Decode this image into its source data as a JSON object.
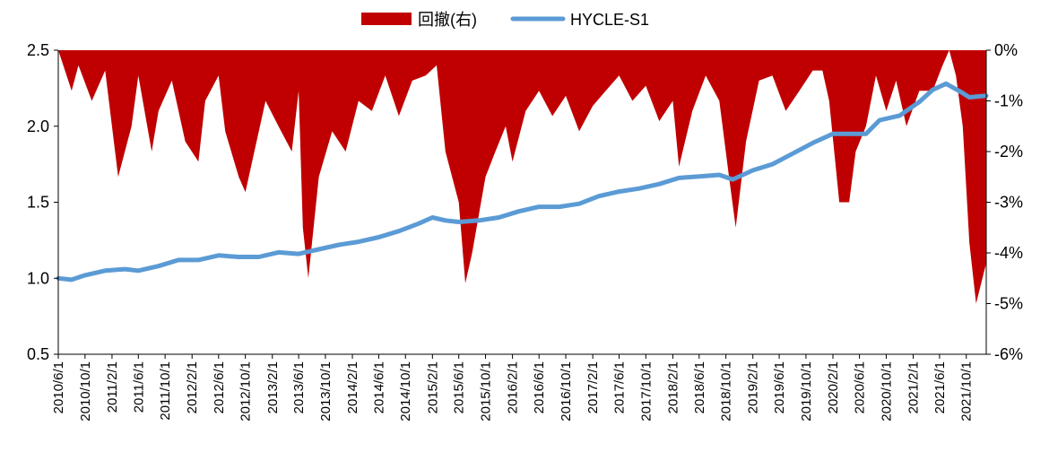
{
  "chart_data": {
    "type": "line",
    "legend": {
      "placement": "top-center",
      "entries": [
        {
          "label": "回撤(右)",
          "kind": "area",
          "color": "#C00000"
        },
        {
          "label": "HYCLE-S1",
          "kind": "line",
          "color": "#5B9BD5"
        }
      ]
    },
    "y_left": {
      "ylim": [
        0.5,
        2.5
      ],
      "ticks": [
        "0.5",
        "1.0",
        "1.5",
        "2.0",
        "2.5"
      ],
      "tick_values": [
        0.5,
        1.0,
        1.5,
        2.0,
        2.5
      ]
    },
    "y_right": {
      "ylim": [
        -6,
        0
      ],
      "ticks": [
        "-6%",
        "-5%",
        "-4%",
        "-3%",
        "-2%",
        "-1%",
        "0%"
      ],
      "tick_values": [
        -6,
        -5,
        -4,
        -3,
        -2,
        -1,
        0
      ]
    },
    "x_range": [
      "2010-06-01",
      "2021-12-31"
    ],
    "x_ticks": [
      "2010/6/1",
      "2010/10/1",
      "2011/2/1",
      "2011/6/1",
      "2011/10/1",
      "2012/2/1",
      "2012/6/1",
      "2012/10/1",
      "2013/2/1",
      "2013/6/1",
      "2013/10/1",
      "2014/2/1",
      "2014/6/1",
      "2014/10/1",
      "2015/2/1",
      "2015/6/1",
      "2015/10/1",
      "2016/2/1",
      "2016/6/1",
      "2016/10/1",
      "2017/2/1",
      "2017/6/1",
      "2017/10/1",
      "2018/2/1",
      "2018/6/1",
      "2018/10/1",
      "2019/2/1",
      "2019/6/1",
      "2019/10/1",
      "2020/2/1",
      "2020/6/1",
      "2020/10/1",
      "2021/2/1",
      "2021/6/1",
      "2021/10/1"
    ],
    "series": [
      {
        "name": "HYCLE-S1",
        "axis": "left",
        "color": "#5B9BD5",
        "x": [
          "2010-06-01",
          "2010-08-01",
          "2010-10-01",
          "2011-01-01",
          "2011-04-01",
          "2011-06-01",
          "2011-09-01",
          "2011-12-01",
          "2012-03-01",
          "2012-06-01",
          "2012-09-01",
          "2012-12-01",
          "2013-03-01",
          "2013-06-01",
          "2013-09-01",
          "2013-12-01",
          "2014-03-01",
          "2014-06-01",
          "2014-09-01",
          "2014-12-01",
          "2015-02-01",
          "2015-04-01",
          "2015-06-01",
          "2015-09-01",
          "2015-12-01",
          "2016-03-01",
          "2016-06-01",
          "2016-09-01",
          "2016-12-01",
          "2017-03-01",
          "2017-06-01",
          "2017-09-01",
          "2017-12-01",
          "2018-03-01",
          "2018-06-01",
          "2018-09-01",
          "2018-11-01",
          "2019-02-01",
          "2019-05-01",
          "2019-08-01",
          "2019-11-01",
          "2020-02-01",
          "2020-04-01",
          "2020-07-01",
          "2020-09-01",
          "2020-12-01",
          "2021-03-01",
          "2021-05-01",
          "2021-07-01",
          "2021-09-01",
          "2021-10-15",
          "2021-12-31"
        ],
        "y": [
          1.0,
          0.99,
          1.02,
          1.05,
          1.06,
          1.05,
          1.08,
          1.12,
          1.12,
          1.15,
          1.14,
          1.14,
          1.17,
          1.16,
          1.19,
          1.22,
          1.24,
          1.27,
          1.31,
          1.36,
          1.4,
          1.38,
          1.37,
          1.38,
          1.4,
          1.44,
          1.47,
          1.47,
          1.49,
          1.54,
          1.57,
          1.59,
          1.62,
          1.66,
          1.67,
          1.68,
          1.65,
          1.71,
          1.75,
          1.82,
          1.89,
          1.95,
          1.95,
          1.95,
          2.04,
          2.07,
          2.16,
          2.24,
          2.28,
          2.23,
          2.19,
          2.2
        ]
      },
      {
        "name": "回撤(右)",
        "axis": "right",
        "color": "#C00000",
        "x": [
          "2010-06-01",
          "2010-08-01",
          "2010-09-01",
          "2010-11-01",
          "2011-01-01",
          "2011-03-01",
          "2011-05-01",
          "2011-06-01",
          "2011-08-01",
          "2011-09-01",
          "2011-11-01",
          "2012-01-01",
          "2012-03-01",
          "2012-04-01",
          "2012-06-01",
          "2012-07-01",
          "2012-09-01",
          "2012-10-01",
          "2012-11-01",
          "2013-01-01",
          "2013-03-01",
          "2013-05-01",
          "2013-06-01",
          "2013-06-20",
          "2013-07-15",
          "2013-09-01",
          "2013-11-01",
          "2014-01-01",
          "2014-03-01",
          "2014-05-01",
          "2014-07-01",
          "2014-09-01",
          "2014-11-01",
          "2015-01-01",
          "2015-02-20",
          "2015-04-01",
          "2015-06-01",
          "2015-07-01",
          "2015-08-01",
          "2015-10-01",
          "2015-11-15",
          "2016-01-01",
          "2016-02-01",
          "2016-04-01",
          "2016-06-01",
          "2016-08-01",
          "2016-10-01",
          "2016-12-01",
          "2017-02-01",
          "2017-04-01",
          "2017-06-01",
          "2017-08-01",
          "2017-10-01",
          "2017-12-01",
          "2018-02-01",
          "2018-03-01",
          "2018-05-01",
          "2018-07-01",
          "2018-09-01",
          "2018-10-15",
          "2018-11-15",
          "2019-01-01",
          "2019-03-01",
          "2019-05-01",
          "2019-07-01",
          "2019-09-01",
          "2019-11-01",
          "2019-12-15",
          "2020-01-15",
          "2020-03-01",
          "2020-04-15",
          "2020-05-15",
          "2020-07-01",
          "2020-08-15",
          "2020-10-01",
          "2020-11-15",
          "2021-01-01",
          "2021-03-01",
          "2021-05-01",
          "2021-06-15",
          "2021-07-15",
          "2021-08-15",
          "2021-09-15",
          "2021-10-15",
          "2021-11-15",
          "2021-12-31"
        ],
        "y": [
          0,
          -0.8,
          -0.3,
          -1.0,
          -0.4,
          -2.5,
          -1.5,
          -0.5,
          -2.0,
          -1.2,
          -0.6,
          -1.8,
          -2.2,
          -1.0,
          -0.5,
          -1.6,
          -2.5,
          -2.8,
          -2.2,
          -1.0,
          -1.5,
          -2.0,
          -0.8,
          -3.5,
          -4.5,
          -2.5,
          -1.6,
          -2.0,
          -1.0,
          -1.2,
          -0.5,
          -1.3,
          -0.6,
          -0.5,
          -0.3,
          -2.0,
          -3.0,
          -4.6,
          -4.0,
          -2.5,
          -2.0,
          -1.5,
          -2.2,
          -1.2,
          -0.8,
          -1.3,
          -0.9,
          -1.6,
          -1.1,
          -0.8,
          -0.5,
          -1.0,
          -0.7,
          -1.4,
          -1.0,
          -2.3,
          -1.2,
          -0.5,
          -1.0,
          -2.5,
          -3.5,
          -1.8,
          -0.6,
          -0.5,
          -1.2,
          -0.8,
          -0.4,
          -0.4,
          -1.0,
          -3.0,
          -3.0,
          -2.0,
          -1.5,
          -0.5,
          -1.2,
          -0.6,
          -1.5,
          -0.8,
          -0.8,
          -0.3,
          0,
          -0.5,
          -1.5,
          -3.8,
          -5.0,
          -4.2
        ]
      }
    ]
  }
}
